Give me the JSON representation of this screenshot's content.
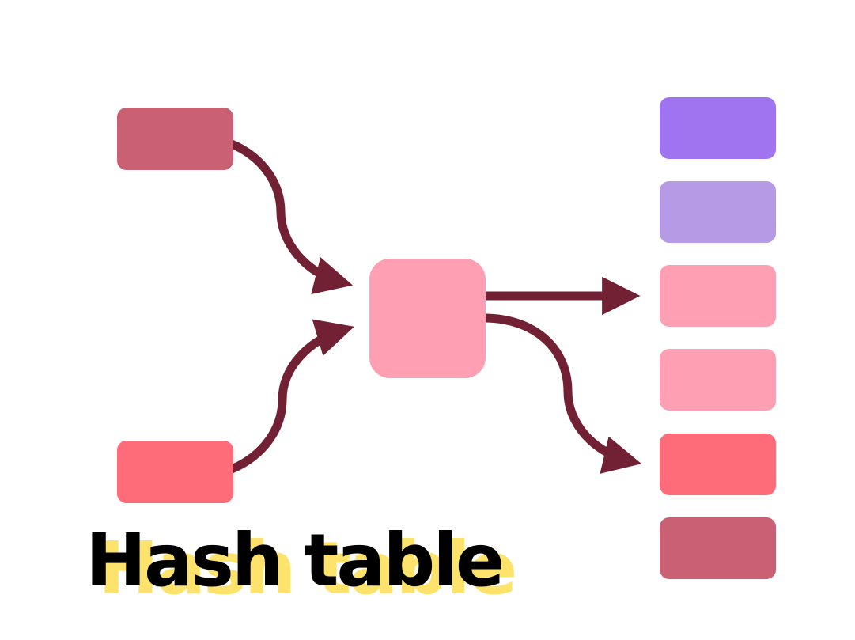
{
  "title": "Hash table",
  "colors": {
    "background": "#ffffff",
    "arrow": "#712133",
    "title_text": "#000000",
    "title_shadow": "#fde36c",
    "key_top": "#c96074",
    "key_bottom": "#ff6c79",
    "hash_function": "#fe9fb4",
    "bucket_1": "#a074f0",
    "bucket_2": "#b69ae6",
    "bucket_3": "#fe9fb4",
    "bucket_4": "#fe9fb4",
    "bucket_5": "#ff6c79",
    "bucket_6": "#c96074"
  },
  "nodes": {
    "keys": [
      "key_top",
      "key_bottom"
    ],
    "hash_function": "hash_function",
    "buckets": [
      "bucket_1",
      "bucket_2",
      "bucket_3",
      "bucket_4",
      "bucket_5",
      "bucket_6"
    ]
  },
  "edges": [
    {
      "from": "key_top",
      "to": "hash_function"
    },
    {
      "from": "key_bottom",
      "to": "hash_function"
    },
    {
      "from": "hash_function",
      "to": "bucket_3"
    },
    {
      "from": "hash_function",
      "to": "bucket_5"
    }
  ]
}
